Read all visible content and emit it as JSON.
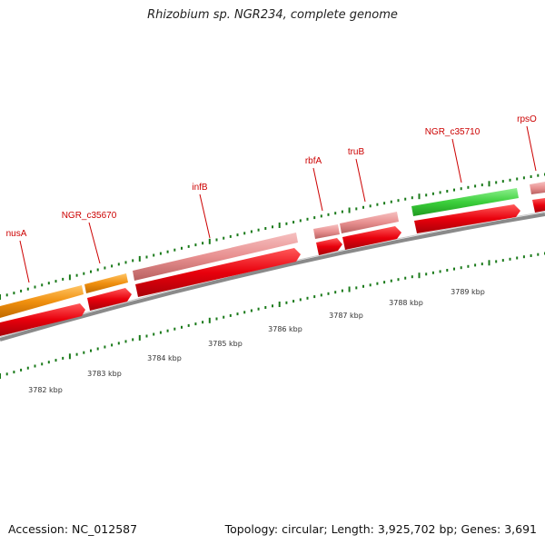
{
  "header": {
    "title": "Rhizobium sp. NGR234, complete genome"
  },
  "footer": {
    "accession": "Accession: NC_012587",
    "summary": "Topology: circular; Length: 3,925,702 bp; Genes: 3,691"
  },
  "genes": [
    {
      "label": "nusA",
      "type": "CDS",
      "feature_color": "#f0900f",
      "cds_color": "#e8000c"
    },
    {
      "label": "NGR_c35670",
      "type": "CDS",
      "feature_color": "#f0900f",
      "cds_color": "#e8000c"
    },
    {
      "label": "infB",
      "type": "CDS",
      "feature_color": "#e89090",
      "cds_color": "#e8000c"
    },
    {
      "label": "rbfA",
      "type": "CDS",
      "feature_color": "#e89090",
      "cds_color": "#e8000c"
    },
    {
      "label": "truB",
      "type": "CDS",
      "feature_color": "#e89090",
      "cds_color": "#e8000c"
    },
    {
      "label": "NGR_c35710",
      "type": "CDS",
      "feature_color": "#3ccf3c",
      "cds_color": "#e8000c"
    },
    {
      "label": "rpsO",
      "type": "CDS",
      "feature_color": "#e89090",
      "cds_color": "#e8000c"
    }
  ],
  "scale": {
    "unit": "kbp",
    "ticks": [
      "3782 kbp",
      "3783 kbp",
      "3784 kbp",
      "3785 kbp",
      "3786 kbp",
      "3787 kbp",
      "3788 kbp",
      "3789 kbp"
    ],
    "tick_color": "#1a7a1a"
  },
  "colors": {
    "label": "#cc0000",
    "backbone": "#8a8a8a"
  }
}
